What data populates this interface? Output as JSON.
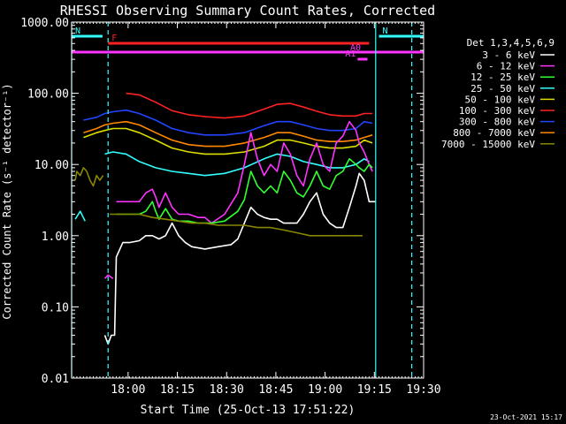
{
  "chart_data": {
    "type": "line",
    "title": "RHESSI Observing Summary Count Rates, Corrected",
    "xlabel": "Start Time (25-Oct-13 17:51:22)",
    "ylabel": "Corrected Count Rate (s⁻¹ detector⁻¹)",
    "yscale": "log",
    "xlim_min": [
      -8.6,
      98.6
    ],
    "ylim": [
      0.01,
      1000
    ],
    "x_ticks": [
      {
        "label": "18:00",
        "min": 8.6
      },
      {
        "label": "18:15",
        "min": 23.6
      },
      {
        "label": "18:30",
        "min": 38.6
      },
      {
        "label": "18:45",
        "min": 53.6
      },
      {
        "label": "19:00",
        "min": 68.6
      },
      {
        "label": "19:15",
        "min": 83.6
      },
      {
        "label": "19:30",
        "min": 98.6
      }
    ],
    "y_ticks": [
      {
        "label": "1000.00",
        "v": 1000
      },
      {
        "label": "100.00",
        "v": 100
      },
      {
        "label": "10.00",
        "v": 10
      },
      {
        "label": "1.00",
        "v": 1
      },
      {
        "label": "0.10",
        "v": 0.1
      },
      {
        "label": "0.01",
        "v": 0.01
      }
    ],
    "legend": {
      "title": "Det 1,3,4,5,6,9",
      "placement": "right",
      "entries": [
        {
          "label": "3 - 6 keV",
          "color": "#ffffff"
        },
        {
          "label": "6 - 12 keV",
          "color": "#ff33ff"
        },
        {
          "label": "12 - 25 keV",
          "color": "#33ff33"
        },
        {
          "label": "25 - 50 keV",
          "color": "#33ffff"
        },
        {
          "label": "50 - 100 keV",
          "color": "#dddd00"
        },
        {
          "label": "100 - 300 keV",
          "color": "#ff2222"
        },
        {
          "label": "300 - 800 keV",
          "color": "#2244ff"
        },
        {
          "label": "800 - 7000 keV",
          "color": "#ff8800"
        },
        {
          "label": "7000 - 15000 keV",
          "color": "#888800"
        }
      ]
    },
    "series": [
      {
        "color": "#ff2222",
        "x": [
          1.5,
          4,
          8,
          12,
          17,
          22,
          27,
          32,
          38,
          44,
          50,
          54,
          58,
          62,
          66,
          70,
          74,
          78,
          80.5,
          83,
          84
        ],
        "y": [
          null,
          null,
          100,
          95,
          75,
          57,
          50,
          47,
          45,
          48,
          60,
          70,
          72,
          64,
          56,
          50,
          48,
          48,
          52,
          52,
          null
        ]
      },
      {
        "color": "#2244ff",
        "x": [
          -8.6,
          -5,
          -1,
          1.5,
          4,
          8,
          12,
          17,
          22,
          27,
          32,
          38,
          44,
          50,
          54,
          58,
          62,
          66,
          70,
          74,
          78,
          80.5,
          83,
          84
        ],
        "y": [
          null,
          42,
          46,
          52,
          55,
          58,
          52,
          42,
          32,
          28,
          26,
          26,
          28,
          35,
          40,
          40,
          36,
          32,
          30,
          30,
          32,
          40,
          38,
          null
        ]
      },
      {
        "color": "#ff8800",
        "x": [
          -8.6,
          -5,
          -1,
          1.5,
          4,
          8,
          12,
          17,
          22,
          27,
          32,
          38,
          44,
          50,
          54,
          58,
          62,
          66,
          70,
          74,
          78,
          80.5,
          83,
          84
        ],
        "y": [
          null,
          28,
          32,
          36,
          38,
          40,
          36,
          28,
          22,
          19,
          18,
          18,
          20,
          24,
          28,
          28,
          25,
          22,
          21,
          21,
          22,
          24,
          26,
          null
        ]
      },
      {
        "color": "#dddd00",
        "x": [
          -8.6,
          -5,
          -1,
          1.5,
          4,
          8,
          12,
          17,
          22,
          27,
          32,
          38,
          44,
          50,
          54,
          58,
          62,
          66,
          70,
          74,
          78,
          80.5,
          83,
          84
        ],
        "y": [
          null,
          24,
          28,
          30,
          32,
          32,
          28,
          22,
          17,
          15,
          14,
          14,
          15,
          18,
          22,
          22,
          20,
          18,
          17,
          17,
          18,
          22,
          20,
          null
        ]
      },
      {
        "color": "#33ffff",
        "x": [
          -8.6,
          -7.5,
          -6,
          -4.5,
          1.2,
          1.5,
          4,
          8,
          12,
          17,
          22,
          27,
          32,
          38,
          44,
          50,
          54,
          58,
          62,
          66,
          70,
          74,
          78,
          80.5,
          82,
          84
        ],
        "y": [
          null,
          1.7,
          2.2,
          1.6,
          null,
          14,
          15,
          14,
          11,
          9,
          8,
          7.5,
          7,
          7.5,
          9,
          12,
          14,
          13,
          11,
          10,
          9,
          9,
          10,
          12,
          11,
          null
        ]
      },
      {
        "color": "#ff33ff",
        "x": [
          1.5,
          2.5,
          4,
          4.5,
          5,
          8,
          12,
          14,
          16,
          17,
          18,
          20,
          22,
          24,
          27,
          30,
          32,
          34,
          38,
          42,
          44,
          46,
          48,
          50,
          52,
          54,
          56,
          58,
          60,
          62,
          64,
          66,
          68,
          70,
          72,
          74,
          76,
          78,
          79,
          80.5,
          82,
          83,
          84
        ],
        "y": [
          0.25,
          0.28,
          0.25,
          null,
          3,
          3,
          3,
          4,
          4.5,
          3.5,
          2.5,
          4,
          2.5,
          2,
          2,
          1.8,
          1.8,
          1.5,
          2,
          4,
          10,
          28,
          12,
          7,
          10,
          8,
          20,
          14,
          7,
          5,
          12,
          20,
          10,
          8,
          20,
          25,
          40,
          30,
          20,
          15,
          10,
          8,
          null
        ]
      },
      {
        "color": "#33ff33",
        "x": [
          1.5,
          2.5,
          4,
          4.5,
          5,
          8,
          12,
          14,
          16,
          17,
          18,
          20,
          22,
          24,
          27,
          30,
          32,
          34,
          38,
          42,
          44,
          46,
          48,
          50,
          52,
          54,
          56,
          58,
          60,
          62,
          64,
          66,
          68,
          70,
          72,
          74,
          76,
          78,
          79,
          80.5,
          82,
          83,
          84
        ],
        "y": [
          null,
          null,
          null,
          null,
          2,
          2,
          2,
          2.2,
          3,
          2.2,
          1.7,
          2.4,
          1.7,
          1.6,
          1.6,
          1.5,
          1.5,
          1.5,
          1.6,
          2.2,
          3.2,
          8,
          5,
          4,
          5,
          4,
          8,
          6,
          4,
          3.5,
          5,
          8,
          5,
          4.5,
          7,
          8,
          12,
          10,
          9,
          8,
          10,
          9,
          null
        ]
      },
      {
        "color": "#ffffff",
        "x": [
          1.5,
          2.5,
          3.5,
          4.5,
          5,
          7,
          9,
          12,
          14,
          16,
          18,
          20,
          22,
          24,
          26,
          28,
          32,
          36,
          40,
          42,
          44,
          46,
          48,
          50,
          52,
          54,
          56,
          58,
          60,
          62,
          64,
          66,
          68,
          70,
          72,
          74,
          76,
          78,
          79,
          80.5,
          82,
          84
        ],
        "y": [
          0.04,
          0.03,
          0.04,
          0.04,
          0.5,
          0.8,
          0.8,
          0.85,
          1.0,
          1.0,
          0.9,
          1.0,
          1.5,
          1.0,
          0.8,
          0.7,
          0.65,
          0.7,
          0.75,
          0.9,
          1.5,
          2.5,
          2.0,
          1.8,
          1.7,
          1.7,
          1.5,
          1.5,
          1.5,
          2.0,
          3.0,
          4.0,
          2.0,
          1.5,
          1.3,
          1.3,
          2.5,
          5,
          7.5,
          6,
          3,
          3
        ]
      },
      {
        "color": "#888800",
        "x": [
          -8.6,
          -7.5,
          -7,
          -6,
          -5,
          -4,
          -3,
          -2,
          -1,
          0,
          1,
          1.5,
          3,
          5,
          8,
          12,
          16,
          20,
          24,
          28,
          32,
          36,
          40,
          44,
          48,
          52,
          56,
          60,
          64,
          68,
          72,
          76,
          80,
          84
        ],
        "y": [
          null,
          6,
          8,
          7,
          9,
          8,
          6,
          5,
          7,
          6,
          7,
          null,
          2,
          2,
          2,
          2,
          1.8,
          1.7,
          1.6,
          1.5,
          1.5,
          1.4,
          1.4,
          1.4,
          1.3,
          1.3,
          1.2,
          1.1,
          1,
          1,
          1,
          1,
          1,
          null
        ]
      }
    ],
    "attenuator_segments": [
      {
        "label": "N",
        "x": [
          -8.6,
          0.8
        ],
        "color": "#33ffff",
        "level": "top"
      },
      {
        "label": "N",
        "x": [
          85,
          98.6
        ],
        "color": "#33ffff",
        "level": "top"
      },
      {
        "label": "F",
        "x": [
          2.5,
          82
        ],
        "color": "#ff2222",
        "level": "upper"
      },
      {
        "label": "A0",
        "x": [
          -8.6,
          98.6
        ],
        "color": "#ff33ff",
        "level": "lower"
      },
      {
        "label": "A1",
        "x": [
          78.5,
          81.5
        ],
        "color": "#ff33ff",
        "level": "lowest"
      }
    ],
    "vertical_lines": [
      {
        "x": -8.6,
        "color": "#33ffff",
        "style": "solid"
      },
      {
        "x": 2.5,
        "color": "#33ffff",
        "style": "dashed"
      },
      {
        "x": 84,
        "color": "#33ffff",
        "style": "solid"
      },
      {
        "x": 95,
        "color": "#33ffff",
        "style": "dashed"
      }
    ]
  },
  "footer": {
    "timestamp": "23-Oct-2021 15:17"
  }
}
